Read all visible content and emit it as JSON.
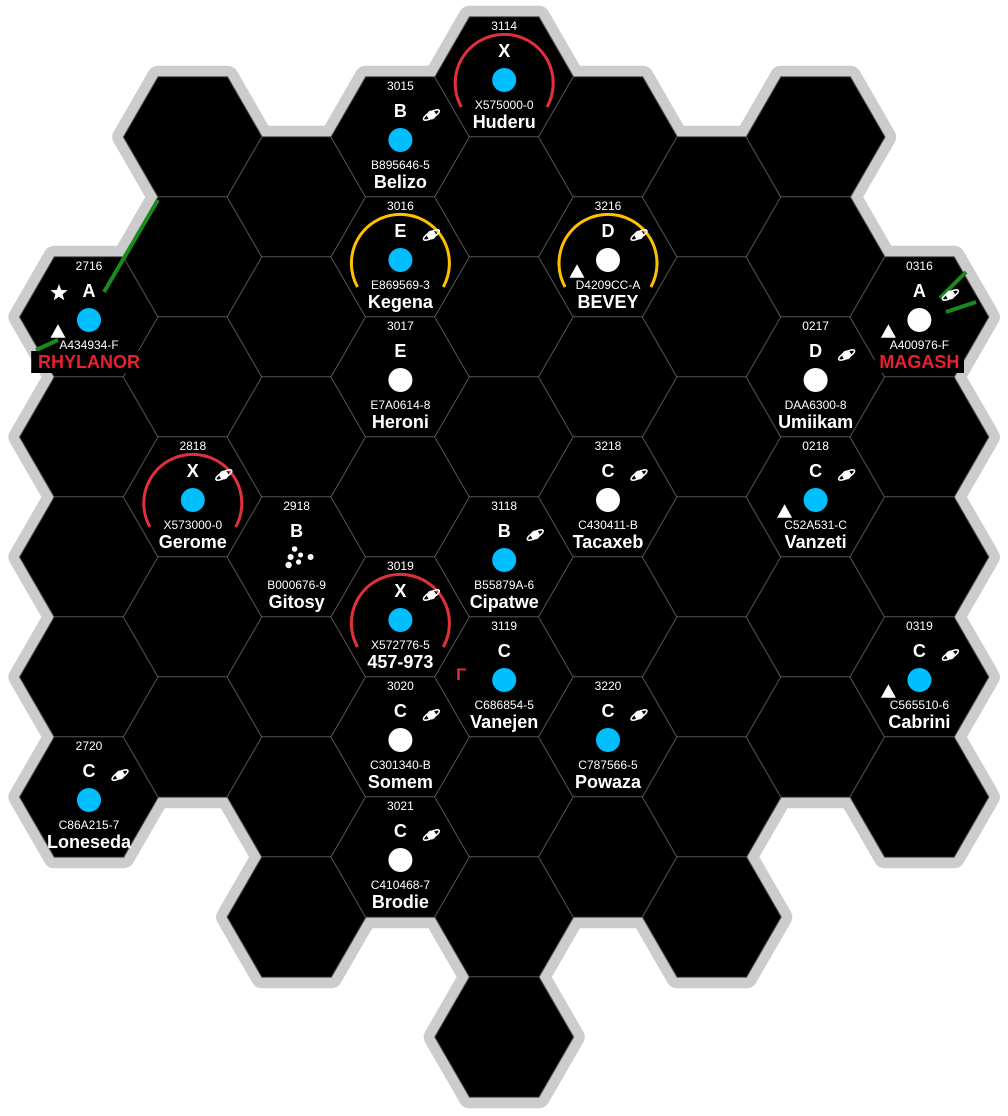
{
  "colors": {
    "hex_fill": "#000000",
    "hex_stroke": "#555555",
    "outline": "#cccccc",
    "water_world": "#00bfff",
    "dry_world": "#ffffff",
    "amber_zone": "#ffc000",
    "red_zone": "#e0303c",
    "route": "#1a8a1a",
    "capital_name": "#e8202f"
  },
  "worlds": [
    {
      "hex": "3114",
      "port": "X",
      "uwp": "X575000-0",
      "name": "Huderu",
      "water": true,
      "gas_giant": false,
      "zone": "red",
      "base": null,
      "capital": false
    },
    {
      "hex": "3015",
      "port": "B",
      "uwp": "B895646-5",
      "name": "Belizo",
      "water": true,
      "gas_giant": true,
      "zone": null,
      "base": null,
      "capital": false
    },
    {
      "hex": "2716",
      "port": "A",
      "uwp": "A434934-F",
      "name": "RHYLANOR",
      "water": true,
      "gas_giant": false,
      "zone": null,
      "base": "scout",
      "star": true,
      "capital": true
    },
    {
      "hex": "0316",
      "port": "A",
      "uwp": "A400976-F",
      "name": "MAGASH",
      "water": false,
      "gas_giant": true,
      "zone": null,
      "base": "scout",
      "capital": true
    },
    {
      "hex": "3016",
      "port": "E",
      "uwp": "E869569-3",
      "name": "Kegena",
      "water": true,
      "gas_giant": true,
      "zone": "amber",
      "base": null,
      "capital": false
    },
    {
      "hex": "3216",
      "port": "D",
      "uwp": "D4209CC-A",
      "name": "BEVEY",
      "water": false,
      "gas_giant": true,
      "zone": "amber",
      "base": "scout",
      "capital": false
    },
    {
      "hex": "3017",
      "port": "E",
      "uwp": "E7A0614-8",
      "name": "Heroni",
      "water": false,
      "gas_giant": false,
      "zone": null,
      "base": null,
      "capital": false
    },
    {
      "hex": "0217",
      "port": "D",
      "uwp": "DAA6300-8",
      "name": "Umiikam",
      "water": false,
      "gas_giant": true,
      "zone": null,
      "base": null,
      "capital": false
    },
    {
      "hex": "2918",
      "port": "B",
      "uwp": "B000676-9",
      "name": "Gitosy",
      "water": false,
      "gas_giant": false,
      "zone": null,
      "base": null,
      "belt": true,
      "capital": false
    },
    {
      "hex": "3118",
      "port": "B",
      "uwp": "B55879A-6",
      "name": "Cipatwe",
      "water": true,
      "gas_giant": true,
      "zone": null,
      "base": null,
      "capital": false
    },
    {
      "hex": "2818",
      "port": "X",
      "uwp": "X573000-0",
      "name": "Gerome",
      "water": true,
      "gas_giant": true,
      "zone": "red",
      "base": null,
      "capital": false
    },
    {
      "hex": "3218",
      "port": "C",
      "uwp": "C430411-B",
      "name": "Tacaxeb",
      "water": false,
      "gas_giant": true,
      "zone": null,
      "base": null,
      "capital": false
    },
    {
      "hex": "0218",
      "port": "C",
      "uwp": "C52A531-C",
      "name": "Vanzeti",
      "water": true,
      "gas_giant": true,
      "zone": null,
      "base": "scout",
      "capital": false
    },
    {
      "hex": "3119",
      "port": "C",
      "uwp": "C686854-5",
      "name": "Vanejen",
      "water": true,
      "gas_giant": false,
      "zone": null,
      "base": "gamma",
      "capital": false
    },
    {
      "hex": "0319",
      "port": "C",
      "uwp": "C565510-6",
      "name": "Cabrini",
      "water": true,
      "gas_giant": true,
      "zone": null,
      "base": "scout",
      "capital": false
    },
    {
      "hex": "3019",
      "port": "X",
      "uwp": "X572776-5",
      "name": "457-973",
      "water": true,
      "gas_giant": true,
      "zone": "red",
      "base": null,
      "capital": false
    },
    {
      "hex": "2720",
      "port": "C",
      "uwp": "C86A215-7",
      "name": "Loneseda",
      "water": true,
      "gas_giant": true,
      "zone": null,
      "base": null,
      "capital": false
    },
    {
      "hex": "3020",
      "port": "C",
      "uwp": "C301340-B",
      "name": "Somem",
      "water": false,
      "gas_giant": true,
      "zone": null,
      "base": null,
      "capital": false
    },
    {
      "hex": "3220",
      "port": "C",
      "uwp": "C787566-5",
      "name": "Powaza",
      "water": true,
      "gas_giant": true,
      "zone": null,
      "base": null,
      "capital": false
    },
    {
      "hex": "3021",
      "port": "C",
      "uwp": "C410468-7",
      "name": "Brodie",
      "water": false,
      "gas_giant": true,
      "zone": null,
      "base": null,
      "capital": false
    }
  ],
  "gamma_glyph": "Γ"
}
